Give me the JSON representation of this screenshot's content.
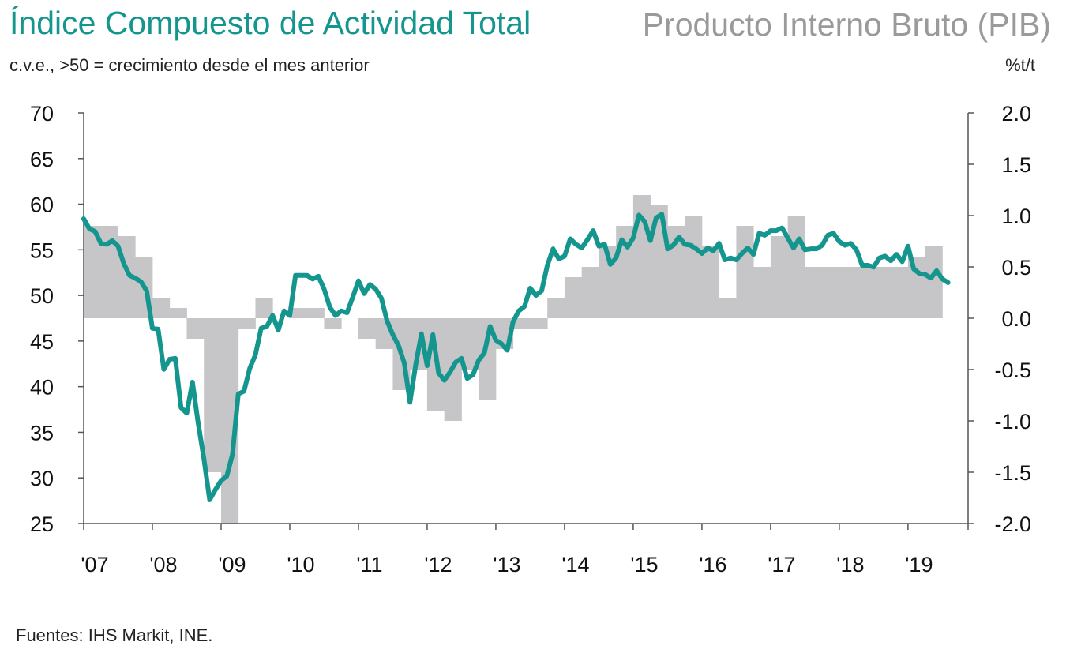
{
  "header": {
    "title_left": "Índice Compuesto de Actividad Total",
    "title_right": "Producto Interno Bruto (PIB)",
    "unit_left": "c.v.e., >50 = crecimiento desde el mes anterior",
    "unit_right": "%t/t"
  },
  "footer": {
    "source": "Fuentes: IHS Markit, INE."
  },
  "colors": {
    "line": "#14968f",
    "bars": "#c6c6c8",
    "title_left": "#14968f",
    "title_right": "#9a9a9a"
  },
  "chart_data": {
    "type": "line+bar",
    "x_ticks": [
      "'07",
      "'08",
      "'09",
      "'10",
      "'11",
      "'12",
      "'13",
      "'14",
      "'15",
      "'16",
      "'17",
      "'18",
      "'19"
    ],
    "x_range": [
      2007.0,
      2019.875
    ],
    "y_left": {
      "range": [
        25,
        70
      ],
      "ticks": [
        "70",
        "65",
        "60",
        "55",
        "50",
        "45",
        "40",
        "35",
        "30",
        "25"
      ]
    },
    "y_right": {
      "range": [
        -2.0,
        2.0
      ],
      "ticks": [
        "2.0",
        "1.5",
        "1.0",
        "0.5",
        "0.0",
        "-0.5",
        "-1.0",
        "-1.5",
        "-2.0"
      ]
    },
    "bars": {
      "axis": "right",
      "quarters": [
        "2007Q1",
        "2007Q2",
        "2007Q3",
        "2007Q4",
        "2008Q1",
        "2008Q2",
        "2008Q3",
        "2008Q4",
        "2009Q1",
        "2009Q2",
        "2009Q3",
        "2009Q4",
        "2010Q1",
        "2010Q2",
        "2010Q3",
        "2010Q4",
        "2011Q1",
        "2011Q2",
        "2011Q3",
        "2011Q4",
        "2012Q1",
        "2012Q2",
        "2012Q3",
        "2012Q4",
        "2013Q1",
        "2013Q2",
        "2013Q3",
        "2013Q4",
        "2014Q1",
        "2014Q2",
        "2014Q3",
        "2014Q4",
        "2015Q1",
        "2015Q2",
        "2015Q3",
        "2015Q4",
        "2016Q1",
        "2016Q2",
        "2016Q3",
        "2016Q4",
        "2017Q1",
        "2017Q2",
        "2017Q3",
        "2017Q4",
        "2018Q1",
        "2018Q2",
        "2018Q3",
        "2018Q4",
        "2019Q1",
        "2019Q2"
      ],
      "values": [
        0.9,
        0.9,
        0.8,
        0.6,
        0.2,
        0.1,
        -0.2,
        -1.5,
        -2.0,
        -0.1,
        0.2,
        0.0,
        0.1,
        0.1,
        -0.1,
        0.0,
        -0.2,
        -0.3,
        -0.7,
        -0.5,
        -0.9,
        -1.0,
        -0.5,
        -0.8,
        -0.3,
        -0.1,
        -0.1,
        0.2,
        0.4,
        0.5,
        0.7,
        0.9,
        1.2,
        1.1,
        0.9,
        1.0,
        0.7,
        0.2,
        0.9,
        0.5,
        0.8,
        1.0,
        0.5,
        0.5,
        0.5,
        0.5,
        0.5,
        0.5,
        0.6,
        0.7
      ]
    },
    "series": {
      "axis": "left",
      "start": "2007-01",
      "values": [
        58.4,
        57.3,
        57.0,
        55.7,
        55.6,
        56.0,
        55.4,
        53.5,
        52.2,
        51.9,
        51.5,
        50.5,
        46.4,
        46.3,
        41.9,
        43.0,
        43.1,
        37.7,
        37.1,
        40.5,
        36.0,
        32.1,
        27.6,
        28.7,
        29.7,
        30.2,
        32.6,
        39.2,
        39.5,
        42.0,
        43.5,
        46.4,
        46.6,
        47.8,
        46.2,
        48.3,
        47.8,
        52.2,
        52.2,
        52.2,
        51.8,
        52.1,
        50.7,
        48.7,
        47.8,
        48.3,
        48.1,
        49.8,
        51.6,
        50.2,
        51.2,
        50.7,
        49.7,
        47.2,
        45.7,
        44.5,
        42.6,
        38.3,
        42.4,
        45.8,
        42.3,
        45.7,
        41.5,
        40.7,
        41.6,
        42.7,
        43.1,
        40.9,
        41.3,
        42.9,
        43.7,
        46.6,
        45.1,
        44.7,
        44.0,
        47.1,
        48.3,
        48.8,
        50.8,
        50.0,
        50.5,
        53.3,
        55.1,
        54.0,
        54.3,
        56.2,
        55.6,
        55.2,
        56.1,
        57.1,
        55.4,
        55.6,
        53.4,
        54.1,
        56.1,
        55.3,
        56.3,
        58.8,
        58.1,
        56.0,
        58.5,
        58.9,
        55.1,
        55.5,
        56.4,
        55.6,
        55.5,
        55.1,
        54.6,
        55.2,
        54.9,
        55.7,
        53.9,
        54.1,
        53.9,
        54.6,
        55.2,
        54.5,
        56.8,
        56.6,
        57.1,
        57.1,
        57.4,
        56.3,
        55.2,
        56.2,
        55.0,
        55.1,
        55.1,
        55.5,
        56.6,
        56.8,
        55.9,
        55.5,
        55.7,
        55.0,
        53.3,
        53.3,
        53.1,
        54.1,
        54.3,
        53.8,
        54.5,
        53.7,
        55.4,
        52.9,
        52.4,
        52.3,
        51.9,
        52.7,
        51.8,
        51.4
      ]
    }
  }
}
